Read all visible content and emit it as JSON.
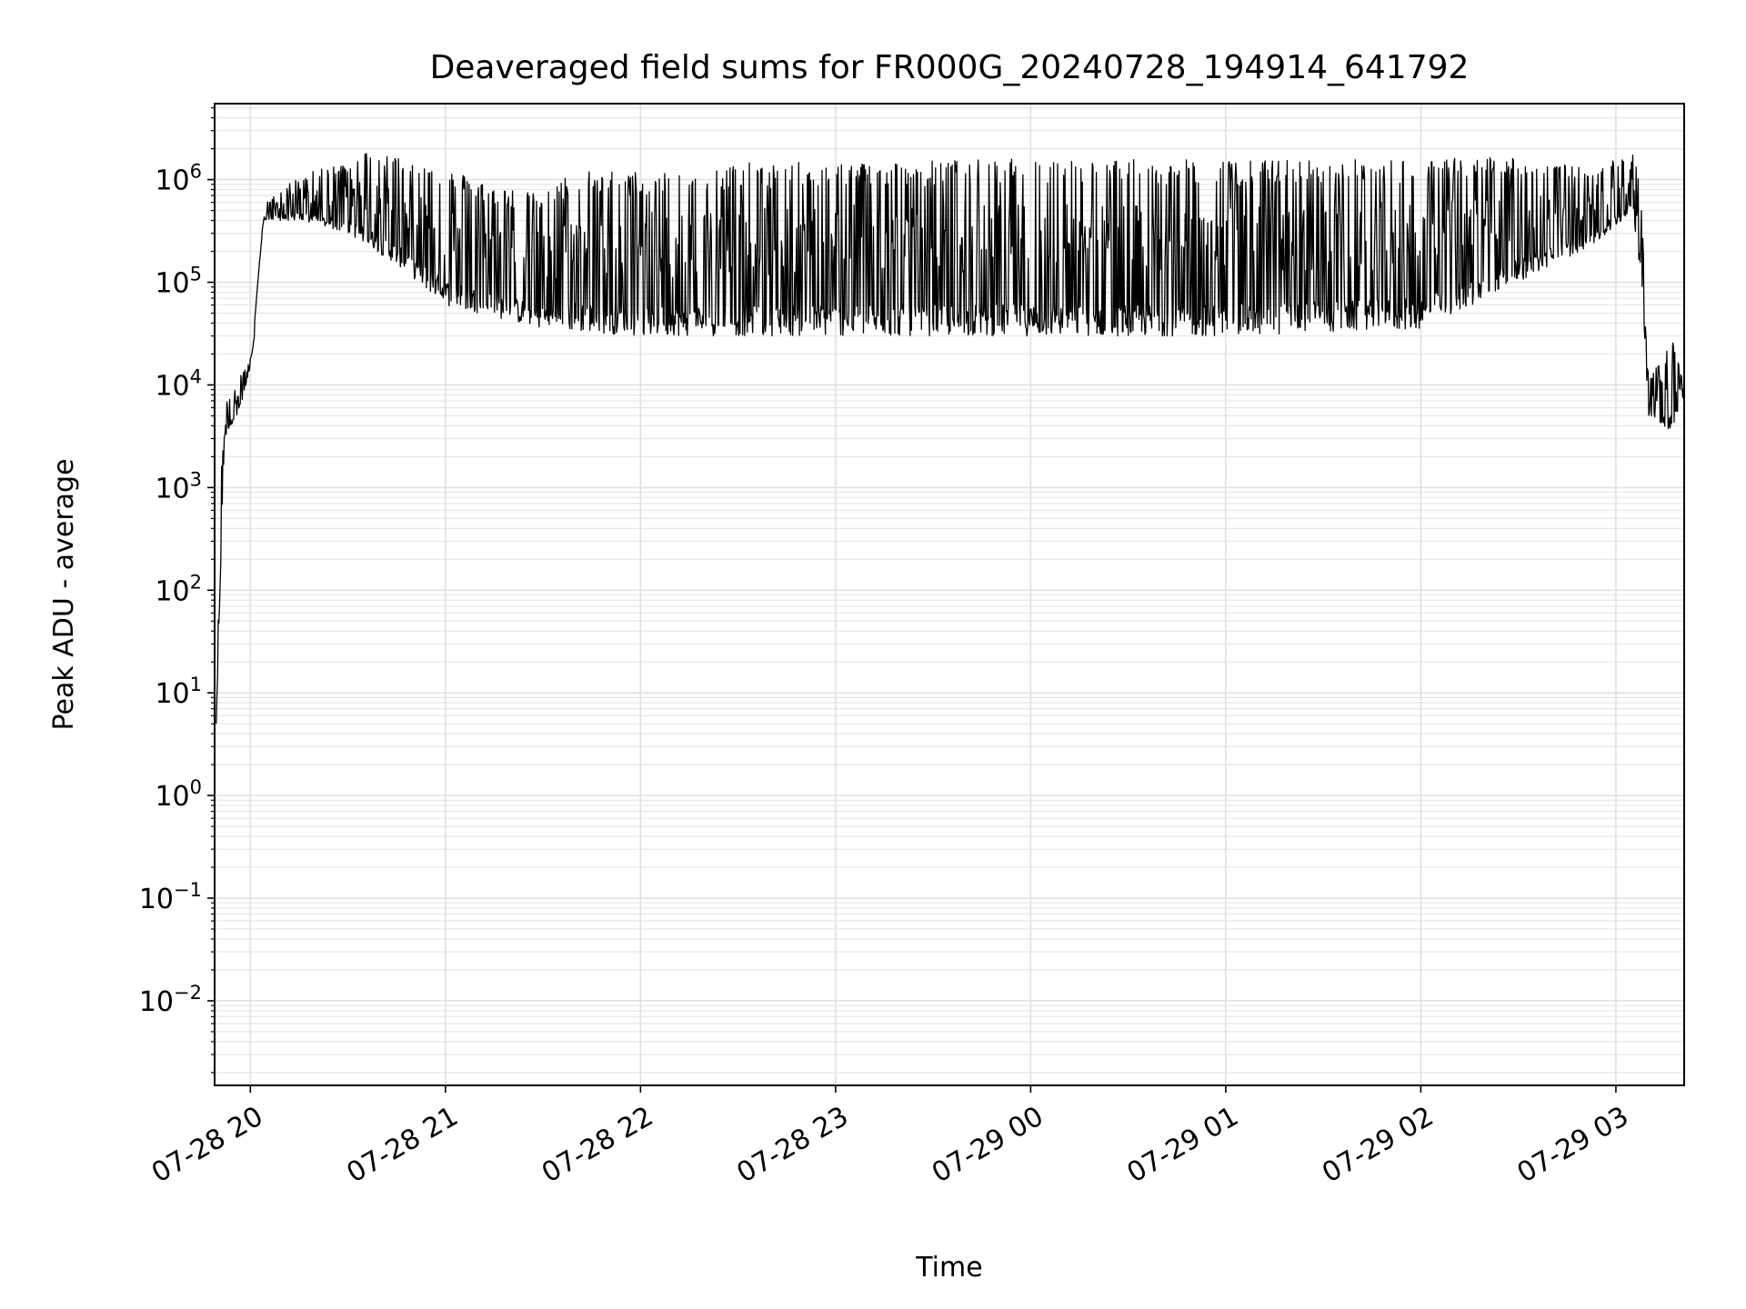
{
  "chart_data": {
    "type": "line",
    "title": "Deaveraged field sums for FR000G_20240728_194914_641792",
    "xlabel": "Time",
    "ylabel": "Peak ADU - average",
    "yscale": "log",
    "grid": true,
    "xlim": [
      "2024-07-28T19:49:00",
      "2024-07-29T03:21:00"
    ],
    "ylim": [
      0.0015,
      5500000
    ],
    "x_ticks": [
      {
        "value": "2024-07-28T20:00:00",
        "label": "07-28 20"
      },
      {
        "value": "2024-07-28T21:00:00",
        "label": "07-28 21"
      },
      {
        "value": "2024-07-28T22:00:00",
        "label": "07-28 22"
      },
      {
        "value": "2024-07-28T23:00:00",
        "label": "07-28 23"
      },
      {
        "value": "2024-07-29T00:00:00",
        "label": "07-29 00"
      },
      {
        "value": "2024-07-29T01:00:00",
        "label": "07-29 01"
      },
      {
        "value": "2024-07-29T02:00:00",
        "label": "07-29 02"
      },
      {
        "value": "2024-07-29T03:00:00",
        "label": "07-29 03"
      }
    ],
    "y_ticks": [
      {
        "value": 0.01,
        "base": "10",
        "exp": "−2"
      },
      {
        "value": 0.1,
        "base": "10",
        "exp": "−1"
      },
      {
        "value": 1,
        "base": "10",
        "exp": "0"
      },
      {
        "value": 10,
        "base": "10",
        "exp": "1"
      },
      {
        "value": 100,
        "base": "10",
        "exp": "2"
      },
      {
        "value": 1000,
        "base": "10",
        "exp": "3"
      },
      {
        "value": 10000,
        "base": "10",
        "exp": "4"
      },
      {
        "value": 100000,
        "base": "10",
        "exp": "5"
      },
      {
        "value": 1000000,
        "base": "10",
        "exp": "6"
      }
    ],
    "series": [
      {
        "color": "#000000",
        "description": "Dense time series; upper/lower envelope of peak ADU minus average, values in ADU at listed times",
        "upper_envelope": [
          {
            "x": "2024-07-28T19:49:30",
            "y": 5
          },
          {
            "x": "2024-07-28T19:51:00",
            "y": 1500
          },
          {
            "x": "2024-07-28T19:53:00",
            "y": 9000
          },
          {
            "x": "2024-07-28T19:56:00",
            "y": 12000
          },
          {
            "x": "2024-07-28T19:59:00",
            "y": 15000
          },
          {
            "x": "2024-07-28T20:01:00",
            "y": 22000
          },
          {
            "x": "2024-07-28T20:03:00",
            "y": 250000
          },
          {
            "x": "2024-07-28T20:05:00",
            "y": 600000
          },
          {
            "x": "2024-07-28T20:15:00",
            "y": 1100000
          },
          {
            "x": "2024-07-28T20:30:00",
            "y": 1500000
          },
          {
            "x": "2024-07-28T20:37:00",
            "y": 2000000
          },
          {
            "x": "2024-07-28T20:45:00",
            "y": 1700000
          },
          {
            "x": "2024-07-28T21:00:00",
            "y": 1300000
          },
          {
            "x": "2024-07-28T21:15:00",
            "y": 900000
          },
          {
            "x": "2024-07-28T21:30:00",
            "y": 700000
          },
          {
            "x": "2024-07-28T21:40:00",
            "y": 1300000
          },
          {
            "x": "2024-07-28T22:00:00",
            "y": 1200000
          },
          {
            "x": "2024-07-28T22:30:00",
            "y": 1450000
          },
          {
            "x": "2024-07-28T23:00:00",
            "y": 1500000
          },
          {
            "x": "2024-07-29T00:00:00",
            "y": 1600000
          },
          {
            "x": "2024-07-29T01:00:00",
            "y": 1550000
          },
          {
            "x": "2024-07-29T02:00:00",
            "y": 1600000
          },
          {
            "x": "2024-07-29T02:30:00",
            "y": 1700000
          },
          {
            "x": "2024-07-29T02:50:00",
            "y": 1300000
          },
          {
            "x": "2024-07-29T03:06:00",
            "y": 1800000
          },
          {
            "x": "2024-07-29T03:08:00",
            "y": 500000
          },
          {
            "x": "2024-07-29T03:10:00",
            "y": 12000
          },
          {
            "x": "2024-07-29T03:18:00",
            "y": 28000
          },
          {
            "x": "2024-07-29T03:21:00",
            "y": 9000
          }
        ],
        "lower_envelope": [
          {
            "x": "2024-07-28T19:49:30",
            "y": 5
          },
          {
            "x": "2024-07-28T19:52:00",
            "y": 3000
          },
          {
            "x": "2024-07-28T19:57:00",
            "y": 6000
          },
          {
            "x": "2024-07-28T20:00:00",
            "y": 15000
          },
          {
            "x": "2024-07-28T20:04:00",
            "y": 400000
          },
          {
            "x": "2024-07-28T20:15:00",
            "y": 400000
          },
          {
            "x": "2024-07-28T20:30:00",
            "y": 300000
          },
          {
            "x": "2024-07-28T20:45:00",
            "y": 150000
          },
          {
            "x": "2024-07-28T21:00:00",
            "y": 60000
          },
          {
            "x": "2024-07-28T21:30:00",
            "y": 35000
          },
          {
            "x": "2024-07-28T22:00:00",
            "y": 30000
          },
          {
            "x": "2024-07-28T23:00:00",
            "y": 30000
          },
          {
            "x": "2024-07-29T00:00:00",
            "y": 30000
          },
          {
            "x": "2024-07-29T01:00:00",
            "y": 30000
          },
          {
            "x": "2024-07-29T02:00:00",
            "y": 35000
          },
          {
            "x": "2024-07-29T02:30:00",
            "y": 100000
          },
          {
            "x": "2024-07-29T02:55:00",
            "y": 250000
          },
          {
            "x": "2024-07-29T03:05:00",
            "y": 500000
          },
          {
            "x": "2024-07-29T03:08:00",
            "y": 100000
          },
          {
            "x": "2024-07-29T03:10:00",
            "y": 5000
          },
          {
            "x": "2024-07-29T03:16:00",
            "y": 3500
          },
          {
            "x": "2024-07-29T03:21:00",
            "y": 6000
          }
        ]
      }
    ]
  }
}
